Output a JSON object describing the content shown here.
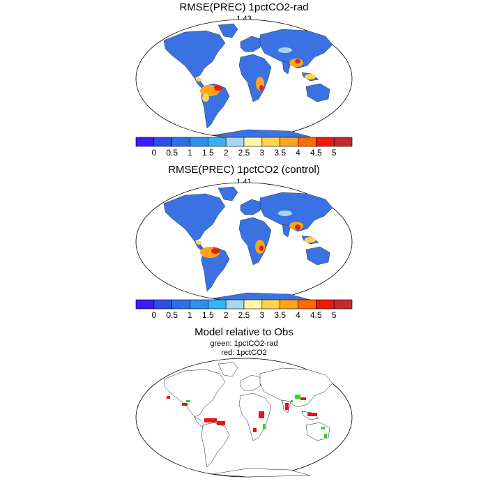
{
  "panels": [
    {
      "title": "RMSE(PREC) 1pctCO2-rad",
      "value": "1.43"
    },
    {
      "title": "RMSE(PREC) 1pctCO2 (control)",
      "value": "1.41"
    },
    {
      "title": "Model relative to Obs",
      "legend": [
        "green: 1pctCO2-rad",
        "red: 1pctCO2"
      ]
    }
  ],
  "colorbar": {
    "labels": [
      "0",
      "0.5",
      "1",
      "1.5",
      "2",
      "2.5",
      "3",
      "3.5",
      "4",
      "4.5",
      "5"
    ],
    "colors": [
      "#3a1ef5",
      "#2d4de6",
      "#2e6fe8",
      "#2e8fee",
      "#35b2f5",
      "#a8d6ee",
      "#fff6a6",
      "#ffd34a",
      "#ffa51a",
      "#ff6a00",
      "#ee1b0b",
      "#c42a2a"
    ]
  },
  "comparison_colors": {
    "rad": "#22dd22",
    "control": "#ee1111"
  }
}
